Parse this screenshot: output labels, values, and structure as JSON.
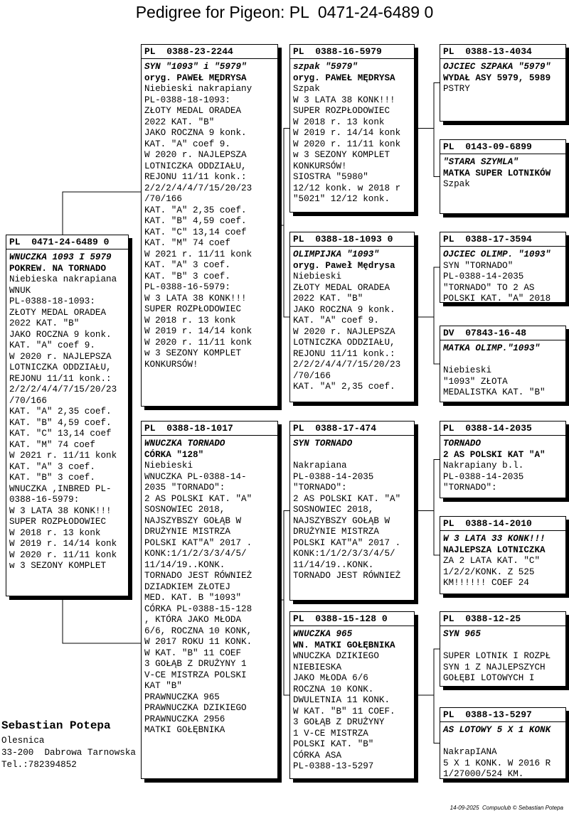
{
  "title": "Pedigree for Pigeon: PL  0471-24-6489 0",
  "pigeons": [
    {
      "ring": "PL  0471-24-6489 0",
      "lines": [
        "WNUCZKA 1093 I 5979",
        "POKREW. NA TORNADO",
        "Niebieska nakrapiana",
        "WNUK",
        "PL-0388-18-1093:",
        "ZŁOTY MEDAL ORADEA",
        "2022 KAT. \"B\"",
        "JAKO ROCZNA 9 konk.",
        "KAT. \"A\" coef 9.",
        "W 2020 r. NAJLEPSZA",
        "LOTNICZKA ODDZIAŁU,",
        "REJONU 11/11 konk.:",
        "2/2/2/4/4/7/15/20/23",
        "/70/166",
        "KAT. \"A\" 2,35 coef.",
        "KAT. \"B\" 4,59 coef.",
        "KAT. \"C\" 13,14 coef",
        "KAT. \"M\" 74 coef",
        "W 2021 r. 11/11 konk",
        "KAT. \"A\" 3 coef.",
        "KAT. \"B\" 3 coef.",
        "WNUCZKA ,INBRED PL-",
        "0388-16-5979:",
        "W 3 LATA 38 KONK!!!",
        "SUPER ROZPŁODOWIEC",
        "W 2018 r. 13 konk",
        "W 2019 r. 14/14 konk",
        "W 2020 r. 11/11 konk",
        "w 3 SEZONY KOMPLET"
      ]
    },
    {
      "ring": "PL  0388-23-2244",
      "lines": [
        "SYN \"1093\" i \"5979\"",
        "oryg. PAWEŁ MĘDRYSA",
        "Niebieski nakrapiany",
        "PL-0388-18-1093:",
        "ZŁOTY MEDAL ORADEA",
        "2022 KAT. \"B\"",
        "JAKO ROCZNA 9 konk.",
        "KAT. \"A\" coef 9.",
        "W 2020 r. NAJLEPSZA",
        "LOTNICZKA ODDZIAŁU,",
        "REJONU 11/11 konk.:",
        "2/2/2/4/4/7/15/20/23",
        "/70/166",
        "KAT. \"A\" 2,35 coef.",
        "KAT. \"B\" 4,59 coef.",
        "KAT. \"C\" 13,14 coef",
        "KAT. \"M\" 74 coef",
        "W 2021 r. 11/11 konk",
        "KAT. \"A\" 3 coef.",
        "KAT. \"B\" 3 coef.",
        "PL-0388-16-5979:",
        "W 3 LATA 38 KONK!!!",
        "SUPER ROZPŁODOWIEC",
        "W 2018 r. 13 konk",
        "W 2019 r. 14/14 konk",
        "W 2020 r. 11/11 konk",
        "w 3 SEZONY KOMPLET",
        "KONKURSÓW!"
      ]
    },
    {
      "ring": "PL  0388-18-1017",
      "lines": [
        "WNUCZKA TORNADO",
        "CÓRKA \"128\"",
        "Niebieski",
        "WNUCZKA PL-0388-14-",
        "2035 \"TORNADO\":",
        "2 AS POLSKI KAT. \"A\"",
        "SOSNOWIEC 2018,",
        "NAJSZYBSZY GOŁĄB W",
        "DRUŻYNIE MISTRZA",
        "POLSKI KAT\"A\" 2017 .",
        "KONK:1/1/2/3/3/4/5/",
        "11/14/19..KONK.",
        "TORNADO JEST RÓWNIEŻ",
        "DZIADKIEM ZŁOTEJ",
        "MED. KAT. B \"1093\"",
        "CÓRKA PL-0388-15-128",
        ", KTÓRA JAKO MŁODA",
        "6/6, ROCZNA 10 KONK,",
        "W 2017 ROKU 11 KONK.",
        "W KAT. \"B\" 11 COEF",
        "3 GOŁĄB Z DRUŻYNY 1",
        "V-CE MISTRZA POLSKI",
        "KAT \"B\"",
        "PRAWNUCZKA 965",
        "PRAWNUCZKA DZIKIEGO",
        "PRAWNUCZKA 2956",
        "MATKI GOŁĘBNIKA"
      ]
    },
    {
      "ring": "PL  0388-16-5979",
      "lines": [
        "szpak \"5979\"",
        "oryg. PAWEŁ MĘDRYSA",
        "Szpak",
        "W 3 LATA 38 KONK!!!",
        "SUPER ROZPŁODOWIEC",
        "W 2018 r. 13 konk",
        "W 2019 r. 14/14 konk",
        "W 2020 r. 11/11 konk",
        "w 3 SEZONY KOMPLET",
        "KONKURSÓW!",
        "SIOSTRA \"5980\"",
        "12/12 konk. w 2018 r",
        "\"5021\" 12/12 konk."
      ]
    },
    {
      "ring": "PL  0388-18-1093 0",
      "lines": [
        "OLIMPIJKA \"1093\"",
        "oryg. Paweł Mędrysa",
        "Niebieski",
        "ZŁOTY MEDAL ORADEA",
        "2022 KAT. \"B\"",
        "JAKO ROCZNA 9 konk.",
        "KAT. \"A\" coef 9.",
        "W 2020 r. NAJLEPSZA",
        "LOTNICZKA ODDZIAŁU,",
        "REJONU 11/11 konk.:",
        "2/2/2/4/4/7/15/20/23",
        "/70/166",
        "KAT. \"A\" 2,35 coef."
      ]
    },
    {
      "ring": "PL  0388-17-474",
      "lines": [
        "SYN TORNADO",
        "Nakrapiana",
        "PL-0388-14-2035",
        "\"TORNADO\":",
        "2 AS POLSKI KAT. \"A\"",
        "SOSNOWIEC 2018,",
        "NAJSZYBSZY GOŁĄB W",
        "DRUŻYNIE MISTRZA",
        "POLSKI KAT\"A\" 2017 .",
        "KONK:1/1/2/3/3/4/5/",
        "11/14/19..KONK.",
        "TORNADO JEST RÓWNIEŻ"
      ]
    },
    {
      "ring": "PL  0388-15-128 0",
      "lines": [
        "WNUCZKA 965",
        "WN. MATKI GOŁĘBNIKA",
        "WNUCZKA DZIKIEGO",
        "NIEBIESKA",
        "JAKO MŁODA 6/6",
        "ROCZNA 10 KONK.",
        "DWULETNIA 11 KONK.",
        "W KAT. \"B\" 11 COEF.",
        "3 GOŁĄB Z DRUŻYNY",
        "1 V-CE MISTRZA",
        "POLSKI KAT. \"B\"",
        "CÓRKA ASA",
        "PL-0388-13-5297"
      ]
    },
    {
      "ring": "PL  0388-13-4034",
      "lines": [
        "OJCIEC SZPAKA \"5979\"",
        "WYDAŁ ASY 5979, 5989",
        "PSTRY"
      ]
    },
    {
      "ring": "PL  0143-09-6899",
      "lines": [
        "\"STARA SZYMLA\"",
        "MATKA SUPER LOTNIKÓW",
        "Szpak"
      ]
    },
    {
      "ring": "PL  0388-17-3594",
      "lines": [
        "OJCIEC OLIMP. \"1093\"",
        "SYN \"TORNADO\"",
        "PL-0388-14-2035",
        "\"TORNADO\" TO 2 AS",
        "POLSKI KAT. \"A\" 2018"
      ]
    },
    {
      "ring": "DV  07843-16-48",
      "lines": [
        "MATKA OLIMP.\"1093\"",
        "Niebieski",
        "\"1093\" ZŁOTA",
        "MEDALISTKA KAT. \"B\""
      ]
    },
    {
      "ring": "PL  0388-14-2035",
      "lines": [
        "TORNADO",
        "2 AS POLSKI KAT \"A\"",
        "Nakrapiany b.l.",
        "PL-0388-14-2035",
        "\"TORNADO\":"
      ]
    },
    {
      "ring": "PL  0388-14-2010",
      "lines": [
        "W 3 LATA 33 KONK!!!",
        "NAJLEPSZA LOTNICZKA",
        "ZA 2 LATA KAT. \"C\"",
        "1/2/2/KONK. Z 525",
        "KM!!!!!! COEF 24"
      ]
    },
    {
      "ring": "PL  0388-12-25",
      "lines": [
        "SYN 965",
        "SUPER LOTNIK I ROZPŁ",
        "SYN 1 Z NAJLEPSZYCH",
        "GOŁĘBI LOTOWYCH I"
      ]
    },
    {
      "ring": "PL  0388-13-5297",
      "lines": [
        "AS LOTOWY 5 X 1 KONK",
        "NakrapIANA",
        "5 X 1 KONK. W 2016 R",
        "1/27000/524 KM."
      ]
    }
  ],
  "breeder": {
    "name": "Sebastian Potepa",
    "address": [
      "Olesnica",
      "33-200  Dabrowa Tarnowska",
      "Tel.:782394852"
    ]
  },
  "footer": "14-09-2025  Compuclub © Sebastian Potepa"
}
